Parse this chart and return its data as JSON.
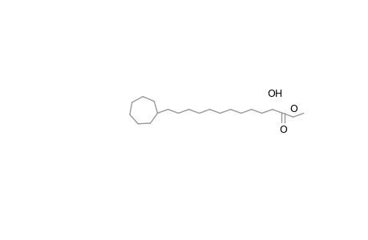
{
  "background_color": "#ffffff",
  "line_color": "#999999",
  "text_color": "#000000",
  "bond_width": 1.0,
  "figure_width": 4.6,
  "figure_height": 3.0,
  "dpi": 100,
  "OH_label": "OH",
  "O_label": "O",
  "O2_label": "O",
  "font_size": 9
}
